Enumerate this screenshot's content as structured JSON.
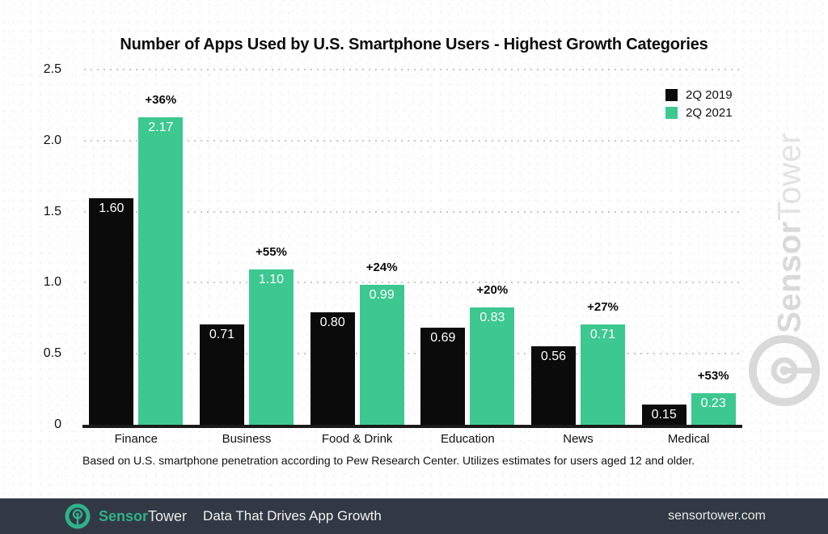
{
  "chart_data": {
    "type": "bar",
    "title": "Number of Apps Used by U.S. Smartphone Users - Highest Growth Categories",
    "categories": [
      "Finance",
      "Business",
      "Food & Drink",
      "Education",
      "News",
      "Medical"
    ],
    "series": [
      {
        "name": "2Q 2019",
        "color": "#0b0b0b",
        "values": [
          1.6,
          0.71,
          0.8,
          0.69,
          0.56,
          0.15
        ]
      },
      {
        "name": "2Q 2021",
        "color": "#3cc890",
        "values": [
          2.17,
          1.1,
          0.99,
          0.83,
          0.71,
          0.23
        ]
      }
    ],
    "growth_labels": [
      "+36%",
      "+55%",
      "+24%",
      "+20%",
      "+27%",
      "+53%"
    ],
    "xlabel": "",
    "ylabel": "",
    "ylim": [
      0,
      2.5
    ],
    "y_tick_labels": [
      "0",
      "0.5",
      "1.0",
      "1.5",
      "2.0",
      "2.5"
    ],
    "grid": "horizontal dotted",
    "legend_position": "top-right",
    "value_label_style": "white, inside bar top",
    "footnote": "Based on U.S. smartphone penetration according to Pew Research Center. Utilizes estimates for users aged 12 and older."
  },
  "watermark": {
    "brand_bold": "Sensor",
    "brand_light": "Tower"
  },
  "footer": {
    "brand_bold": "Sensor",
    "brand_light": "Tower",
    "tagline": "Data That Drives App Growth",
    "url": "sensortower.com"
  },
  "theme": {
    "brand_green": "#2fb189",
    "bar_green": "#3cc890",
    "bar_black": "#0b0b0b",
    "footer_bg": "#323944",
    "watermark_gray": "#d9d9d9",
    "axis_color": "#1b1b1b",
    "grid_color": "#c7c7c7"
  }
}
